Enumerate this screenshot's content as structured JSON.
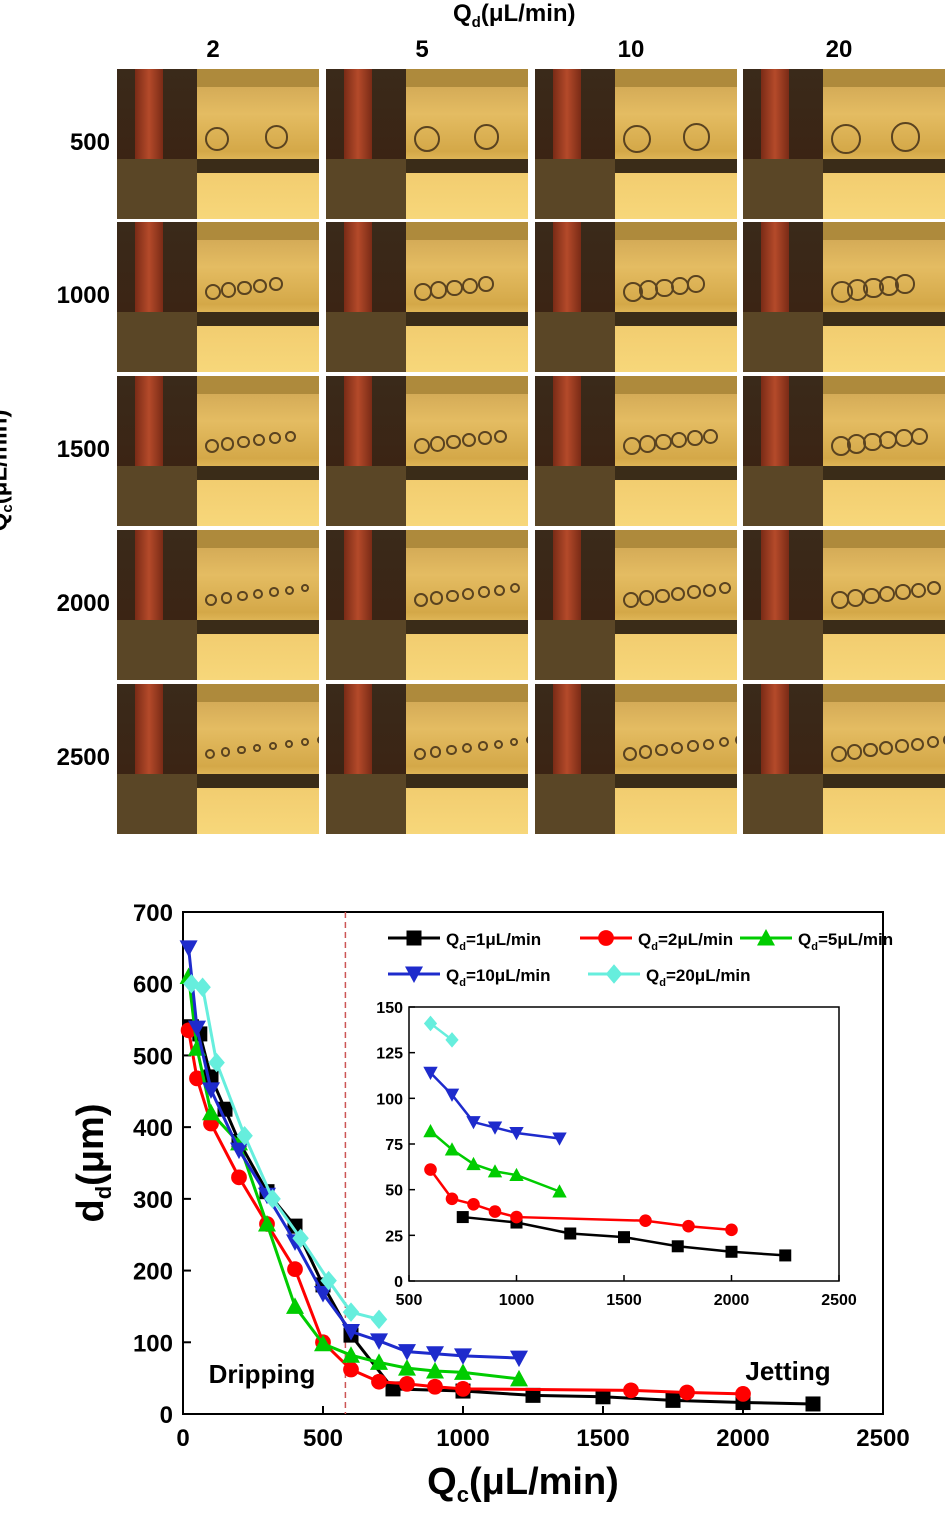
{
  "image_grid": {
    "title_main": "Q",
    "title_sub": "d",
    "title_unit": "(μL/min)",
    "column_labels": [
      "2",
      "5",
      "10",
      "20"
    ],
    "row_title_main": "Q",
    "row_title_sub": "c",
    "row_title_unit": "(μL/min)",
    "row_labels": [
      "500",
      "1000",
      "1500",
      "2000",
      "2500"
    ]
  },
  "chart_data": [
    {
      "type": "line",
      "xlabel_main": "Q",
      "xlabel_sub": "c",
      "xlabel_unit": "(μL/min)",
      "ylabel_main": "d",
      "ylabel_sub": "d",
      "ylabel_unit": "(μm)",
      "xlim": [
        0,
        2500
      ],
      "ylim": [
        0,
        700
      ],
      "xticks": [
        0,
        500,
        1000,
        1500,
        2000,
        2500
      ],
      "yticks": [
        0,
        100,
        200,
        300,
        400,
        500,
        600,
        700
      ],
      "annotations": [
        "Dripping",
        "Jetting"
      ],
      "reference_line_x": 580,
      "legend_position": "top-right",
      "series": [
        {
          "label_main": "Q",
          "label_sub": "d",
          "label_unit": "=1μL/min",
          "color": "#000000",
          "marker": "square",
          "points": [
            [
              30,
              540
            ],
            [
              60,
              530
            ],
            [
              100,
              470
            ],
            [
              150,
              425
            ],
            [
              200,
              380
            ],
            [
              300,
              310
            ],
            [
              400,
              262
            ],
            [
              500,
              180
            ],
            [
              600,
              110
            ],
            [
              750,
              35
            ],
            [
              1000,
              32
            ],
            [
              1250,
              26
            ],
            [
              1500,
              24
            ],
            [
              1750,
              19
            ],
            [
              2000,
              16
            ],
            [
              2250,
              14
            ]
          ]
        },
        {
          "label_main": "Q",
          "label_sub": "d",
          "label_unit": "=2μL/min",
          "color": "#ff0000",
          "marker": "circle",
          "points": [
            [
              20,
              535
            ],
            [
              50,
              468
            ],
            [
              100,
              405
            ],
            [
              200,
              330
            ],
            [
              300,
              265
            ],
            [
              400,
              202
            ],
            [
              500,
              100
            ],
            [
              600,
              62
            ],
            [
              700,
              45
            ],
            [
              800,
              42
            ],
            [
              900,
              38
            ],
            [
              1000,
              35
            ],
            [
              1600,
              33
            ],
            [
              1800,
              30
            ],
            [
              2000,
              28
            ]
          ]
        },
        {
          "label_main": "Q",
          "label_sub": "d",
          "label_unit": "=5μL/min",
          "color": "#00cc00",
          "marker": "triangle-up",
          "points": [
            [
              20,
              610
            ],
            [
              50,
              510
            ],
            [
              100,
              420
            ],
            [
              200,
              378
            ],
            [
              300,
              265
            ],
            [
              400,
              150
            ],
            [
              500,
              98
            ],
            [
              600,
              82
            ],
            [
              700,
              72
            ],
            [
              800,
              64
            ],
            [
              900,
              60
            ],
            [
              1000,
              58
            ],
            [
              1200,
              49
            ]
          ]
        },
        {
          "label_main": "Q",
          "label_sub": "d",
          "label_unit": "=10μL/min",
          "color": "#1e2bcc",
          "marker": "triangle-down",
          "points": [
            [
              20,
              650
            ],
            [
              50,
              538
            ],
            [
              100,
              452
            ],
            [
              200,
              368
            ],
            [
              300,
              305
            ],
            [
              400,
              240
            ],
            [
              500,
              168
            ],
            [
              600,
              115
            ],
            [
              700,
              102
            ],
            [
              800,
              87
            ],
            [
              900,
              84
            ],
            [
              1000,
              81
            ],
            [
              1200,
              78
            ]
          ]
        },
        {
          "label_main": "Q",
          "label_sub": "d",
          "label_unit": "=20μL/min",
          "color": "#66eedd",
          "marker": "diamond",
          "points": [
            [
              30,
              600
            ],
            [
              70,
              595
            ],
            [
              120,
              490
            ],
            [
              220,
              388
            ],
            [
              320,
              300
            ],
            [
              420,
              245
            ],
            [
              520,
              186
            ],
            [
              600,
              142
            ],
            [
              700,
              132
            ]
          ]
        }
      ]
    },
    {
      "type": "line",
      "role": "inset",
      "xlim": [
        500,
        2500
      ],
      "ylim": [
        0,
        150
      ],
      "xticks": [
        500,
        1000,
        1500,
        2000,
        2500
      ],
      "yticks": [
        0,
        25,
        50,
        75,
        100,
        125,
        150
      ],
      "series": [
        {
          "color": "#000000",
          "marker": "square",
          "points": [
            [
              750,
              35
            ],
            [
              1000,
              32
            ],
            [
              1250,
              26
            ],
            [
              1500,
              24
            ],
            [
              1750,
              19
            ],
            [
              2000,
              16
            ],
            [
              2250,
              14
            ]
          ]
        },
        {
          "color": "#ff0000",
          "marker": "circle",
          "points": [
            [
              600,
              61
            ],
            [
              700,
              45
            ],
            [
              800,
              42
            ],
            [
              900,
              38
            ],
            [
              1000,
              35
            ],
            [
              1600,
              33
            ],
            [
              1800,
              30
            ],
            [
              2000,
              28
            ]
          ]
        },
        {
          "color": "#00cc00",
          "marker": "triangle-up",
          "points": [
            [
              600,
              82
            ],
            [
              700,
              72
            ],
            [
              800,
              64
            ],
            [
              900,
              60
            ],
            [
              1000,
              58
            ],
            [
              1200,
              49
            ]
          ]
        },
        {
          "color": "#1e2bcc",
          "marker": "triangle-down",
          "points": [
            [
              600,
              114
            ],
            [
              700,
              102
            ],
            [
              800,
              87
            ],
            [
              900,
              84
            ],
            [
              1000,
              81
            ],
            [
              1200,
              78
            ]
          ]
        },
        {
          "color": "#66eedd",
          "marker": "diamond",
          "points": [
            [
              600,
              141
            ],
            [
              700,
              132
            ]
          ]
        }
      ]
    }
  ]
}
